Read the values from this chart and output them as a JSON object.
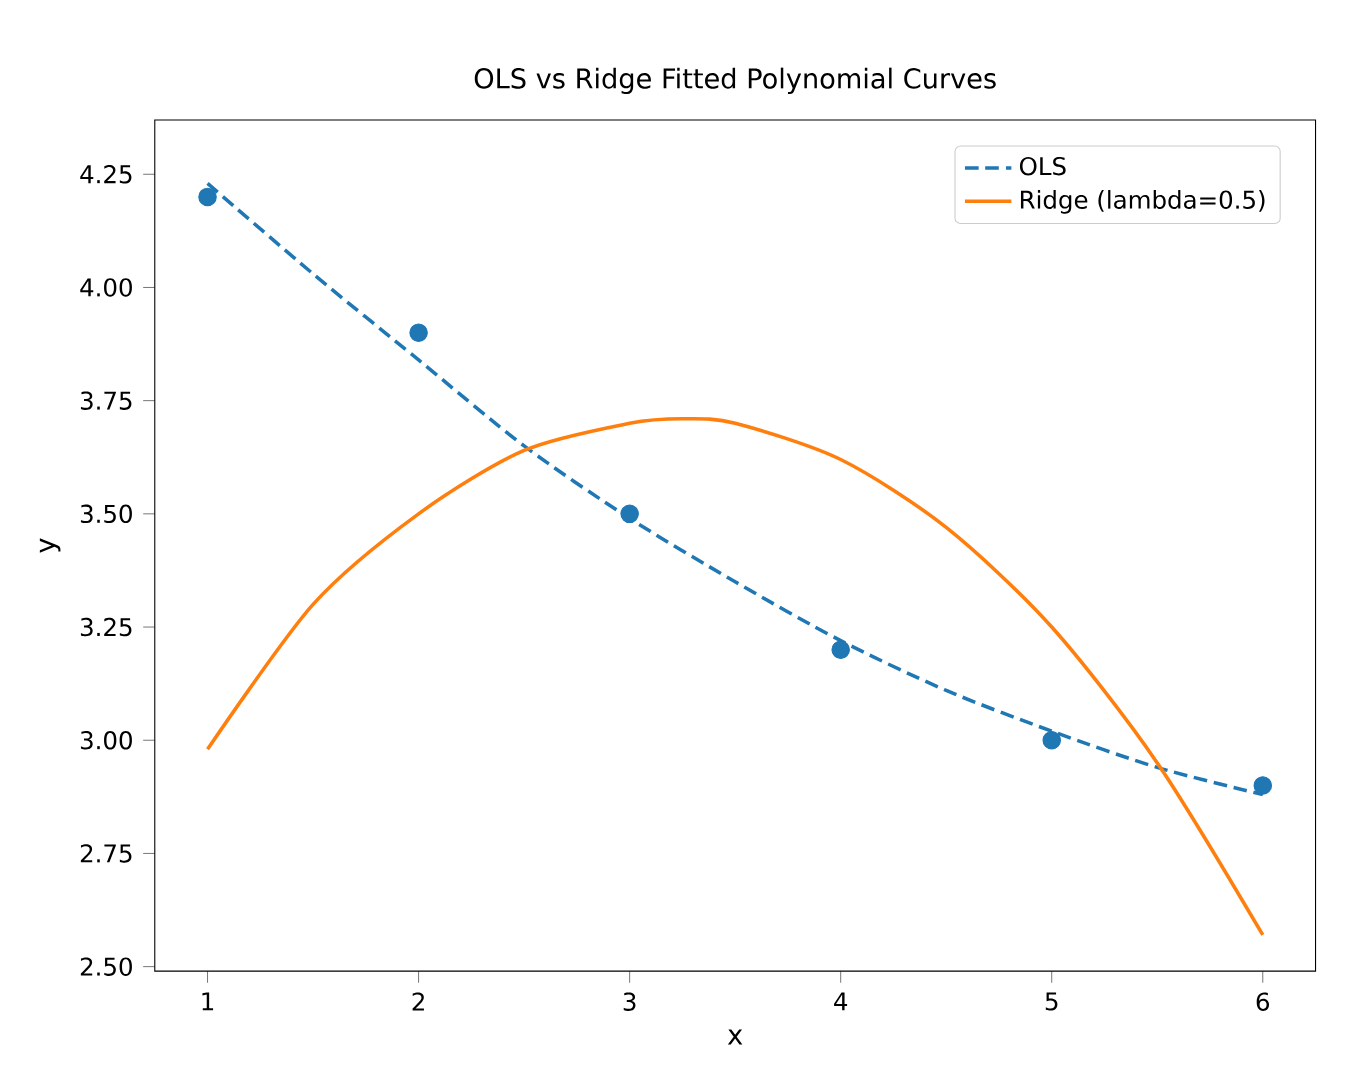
{
  "chart_data": {
    "type": "line",
    "title": "OLS vs Ridge Fitted Polynomial Curves",
    "xlabel": "x",
    "ylabel": "y",
    "xlim": [
      0.75,
      6.25
    ],
    "ylim": [
      2.49,
      4.37
    ],
    "xticks": [
      1,
      2,
      3,
      4,
      5,
      6
    ],
    "yticks": [
      {
        "value": 2.5,
        "label": "2.50"
      },
      {
        "value": 2.75,
        "label": "2.75"
      },
      {
        "value": 3.0,
        "label": "3.00"
      },
      {
        "value": 3.25,
        "label": "3.25"
      },
      {
        "value": 3.5,
        "label": "3.50"
      },
      {
        "value": 3.75,
        "label": "3.75"
      },
      {
        "value": 4.0,
        "label": "4.00"
      },
      {
        "value": 4.25,
        "label": "4.25"
      }
    ],
    "legend": "top right",
    "series": [
      {
        "type": "scatter",
        "color": "#1f77b4",
        "marker": "circle",
        "x": [
          1,
          2,
          3,
          4,
          5,
          6
        ],
        "values": [
          4.2,
          3.9,
          3.5,
          3.2,
          3.0,
          2.9
        ]
      },
      {
        "name": "OLS",
        "color": "#1f77b4",
        "line_style": "dashed",
        "x": [
          1,
          1.5,
          2,
          2.5,
          3,
          3.5,
          4,
          4.5,
          5,
          5.5,
          6
        ],
        "values": [
          4.23,
          4.03,
          3.84,
          3.65,
          3.49,
          3.35,
          3.22,
          3.11,
          3.02,
          2.94,
          2.88
        ]
      },
      {
        "name": "Ridge (lambda=0.5)",
        "color": "#ff7f0e",
        "line_style": "solid",
        "x": [
          1,
          1.5,
          2,
          2.5,
          3,
          3.25,
          3.5,
          4,
          4.5,
          5,
          5.5,
          6
        ],
        "values": [
          2.98,
          3.3,
          3.5,
          3.64,
          3.7,
          3.71,
          3.7,
          3.62,
          3.47,
          3.25,
          2.95,
          2.57
        ]
      }
    ]
  }
}
